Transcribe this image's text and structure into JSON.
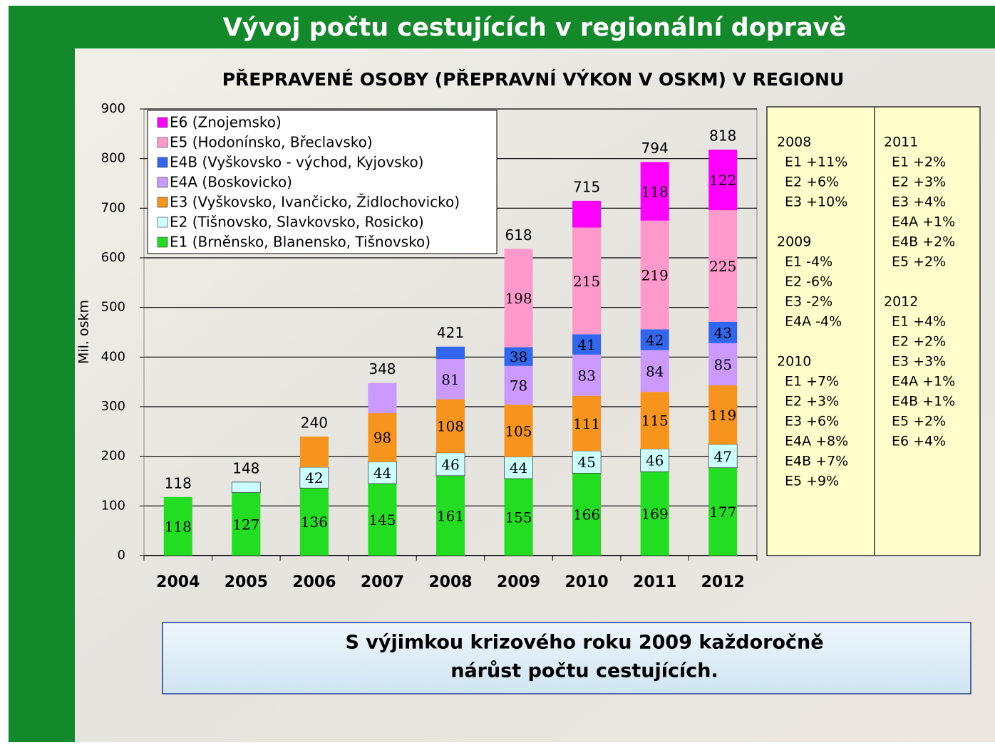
{
  "header": {
    "title": "Vývoj počtu cestujících v regionální dopravě"
  },
  "chart_data": {
    "type": "stacked-bar",
    "title": "PŘEPRAVENÉ OSOBY (PŘEPRAVNÍ VÝKON V OSKM) V REGIONU",
    "y_label": "Mil. oskm",
    "categories": [
      "2004",
      "2005",
      "2006",
      "2007",
      "2008",
      "2009",
      "2010",
      "2011",
      "2012"
    ],
    "series": [
      {
        "name": "E1 (Brněnsko, Blanensko, Tišnovsko)",
        "color": "#22dd22",
        "values": [
          118,
          127,
          136,
          145,
          161,
          155,
          166,
          169,
          177
        ],
        "value_labels": [
          "118",
          "127",
          "136",
          "145",
          "161",
          "155",
          "166",
          "169",
          "177"
        ]
      },
      {
        "name": "E2 (Tišnovsko, Slavkovsko, Rosicko)",
        "color": "#ccffff",
        "values": [
          null,
          21,
          42,
          44,
          46,
          44,
          45,
          46,
          47
        ],
        "value_labels": [
          null,
          null,
          "42",
          "44",
          "46",
          "44",
          "45",
          "46",
          "47"
        ]
      },
      {
        "name": "E3 (Vyškovsko, Ivančicko, Židlochovicko)",
        "color": "#f7941d",
        "values": [
          null,
          null,
          62,
          98,
          108,
          105,
          111,
          115,
          119
        ],
        "value_labels": [
          null,
          null,
          null,
          "98",
          "108",
          "105",
          "111",
          "115",
          "119"
        ]
      },
      {
        "name": "E4A (Boskovicko)",
        "color": "#cc99ff",
        "values": [
          null,
          null,
          null,
          61,
          81,
          78,
          83,
          84,
          85
        ],
        "value_labels": [
          null,
          null,
          null,
          null,
          "81",
          "78",
          "83",
          "84",
          "85"
        ]
      },
      {
        "name": "E4B (Vyškovsko - východ, Kyjovsko)",
        "color": "#3366ee",
        "values": [
          null,
          null,
          null,
          null,
          25,
          38,
          41,
          42,
          43
        ],
        "value_labels": [
          null,
          null,
          null,
          null,
          null,
          "38",
          "41",
          "42",
          "43"
        ]
      },
      {
        "name": "E5 (Hodonínsko, Břeclavsko)",
        "color": "#ff99cc",
        "values": [
          null,
          null,
          null,
          null,
          null,
          198,
          215,
          219,
          225
        ],
        "value_labels": [
          null,
          null,
          null,
          null,
          null,
          "198",
          "215",
          "219",
          "225"
        ]
      },
      {
        "name": "E6 (Znojemsko)",
        "color": "#ff00ff",
        "values": [
          null,
          null,
          null,
          null,
          null,
          null,
          54,
          118,
          122
        ],
        "value_labels": [
          null,
          null,
          null,
          null,
          null,
          null,
          null,
          "118",
          "122"
        ]
      }
    ],
    "totals": [
      118,
      148,
      240,
      348,
      421,
      618,
      715,
      794,
      818
    ],
    "ylim": [
      0,
      900
    ],
    "yticks": [
      0,
      100,
      200,
      300,
      400,
      500,
      600,
      700,
      800,
      900
    ],
    "grid": true
  },
  "notes": {
    "columns": [
      [
        {
          "year": "2008",
          "items": [
            "E1 +11%",
            "E2 +6%",
            "E3 +10%"
          ]
        },
        {
          "year": "2009",
          "items": [
            "E1 -4%",
            "E2 -6%",
            "E3 -2%",
            "E4A -4%"
          ]
        },
        {
          "year": "2010",
          "items": [
            "E1 +7%",
            "E2 +3%",
            "E3 +6%",
            "E4A +8%",
            "E4B +7%",
            "E5 +9%"
          ]
        }
      ],
      [
        {
          "year": "2011",
          "items": [
            "E1 +2%",
            "E2 +3%",
            "E3 +4%",
            "E4A +1%",
            "E4B +2%",
            "E5 +2%"
          ]
        },
        {
          "year": "2012",
          "items": [
            "E1 +4%",
            "E2 +2%",
            "E3 +3%",
            "E4A +1%",
            "E4B +1%",
            "E5 +2%",
            "E6 +4%"
          ]
        }
      ]
    ]
  },
  "callout": {
    "lines": [
      "S výjimkou krizového roku 2009 každoročně",
      "nárůst počtu cestujících."
    ]
  }
}
